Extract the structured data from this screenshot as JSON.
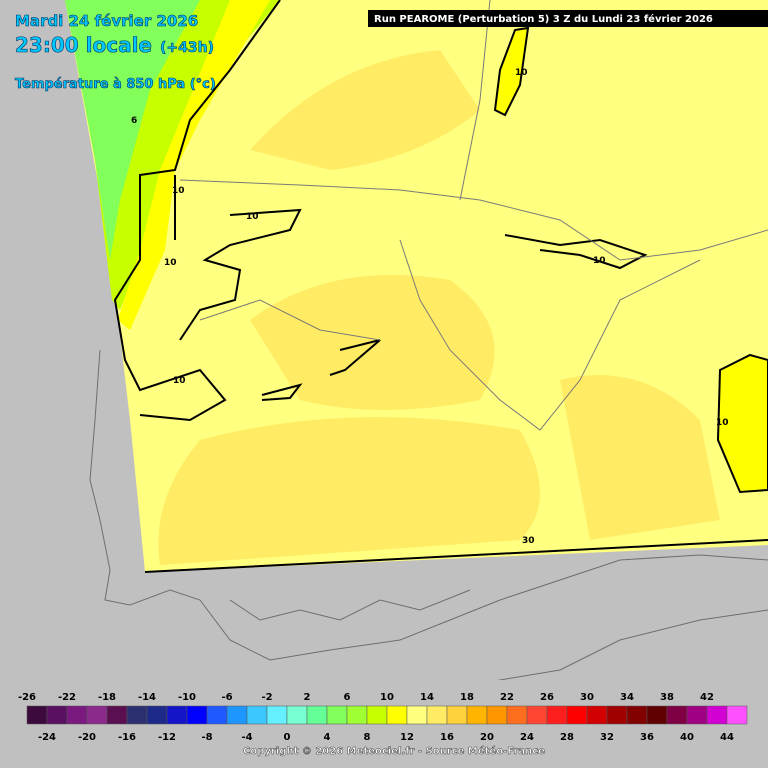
{
  "header": {
    "date": "Mardi 24 février 2026",
    "time": "23:00 locale",
    "lead": "(+43h)",
    "field": "Température à 850 hPa (°c)",
    "run": "Run PEAROME (Perturbation 5) 3 Z du Lundi 23 février 2026"
  },
  "contour_labels": [
    "6",
    "10",
    "10",
    "10",
    "10",
    "10",
    "10",
    "10",
    "30"
  ],
  "legend": {
    "top_labels": [
      -26,
      -22,
      -18,
      -14,
      -10,
      -6,
      -2,
      2,
      6,
      10,
      14,
      18,
      22,
      26,
      30,
      34,
      38,
      42
    ],
    "bottom_labels": [
      -24,
      -20,
      -16,
      -12,
      -8,
      -4,
      0,
      4,
      8,
      12,
      16,
      20,
      24,
      28,
      32,
      36,
      40,
      44
    ],
    "colors": [
      "#3c0a3c",
      "#5a1060",
      "#7a1a80",
      "#8c2a8c",
      "#5a1050",
      "#2c3070",
      "#1e2a8a",
      "#1414c8",
      "#0000ff",
      "#1e5aff",
      "#1e96ff",
      "#3cc8ff",
      "#64f0ff",
      "#78ffd2",
      "#64ff96",
      "#82ff5a",
      "#a0ff32",
      "#c8ff00",
      "#ffff00",
      "#ffff80",
      "#ffec64",
      "#ffd23c",
      "#ffb400",
      "#ff9600",
      "#ff6e1e",
      "#ff4632",
      "#ff1e1e",
      "#ff0000",
      "#d20000",
      "#a00000",
      "#820000",
      "#600000",
      "#800046",
      "#a00082",
      "#d200d2",
      "#ff50ff"
    ],
    "copyright": "Copyright © 2026 Meteociel.fr - Source Météo-France"
  }
}
